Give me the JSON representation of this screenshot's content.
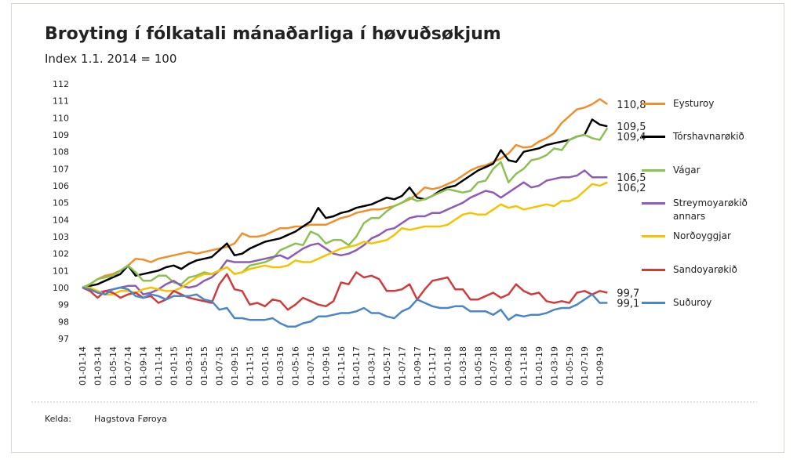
{
  "chart_data": {
    "type": "line",
    "title": "Broyting í fólkatali mánaðarliga í høvuðsøkjum",
    "subtitle": "Index 1.1. 2014 = 100",
    "source_label": "Kelda:",
    "source": "Hagstova Føroya",
    "grid": false,
    "legend": "right",
    "ylim": [
      97,
      112
    ],
    "yticks": [
      97,
      98,
      99,
      100,
      101,
      102,
      103,
      104,
      105,
      106,
      107,
      108,
      109,
      110,
      111,
      112
    ],
    "categories": [
      "01-01-14",
      null,
      "01-03-14",
      null,
      "01-05-14",
      null,
      "01-07-14",
      null,
      "01-09-14",
      null,
      "01-11-14",
      null,
      "01-01-15",
      null,
      "01-03-15",
      null,
      "01-05-15",
      null,
      "01-07-15",
      null,
      "01-09-15",
      null,
      "01-11-15",
      null,
      "01-01-16",
      null,
      "01-03-16",
      null,
      "01-05-16",
      null,
      "01-07-16",
      null,
      "01-09-16",
      null,
      "01-11-16",
      null,
      "01-01-17",
      null,
      "01-03-17",
      null,
      "01-05-17",
      null,
      "01-07-17",
      null,
      "01-09-17",
      null,
      "01-11-17",
      null,
      "01-01-18",
      null,
      "01-03-18",
      null,
      "01-05-18",
      null,
      "01-07-18",
      null,
      "01-09-18",
      null,
      "01-11-18",
      null,
      "01-01-19",
      null,
      "01-03-19",
      null,
      "01-05-19",
      null,
      "01-07-19",
      null,
      "01-09-19",
      null
    ],
    "series": [
      {
        "name": "Eysturoy",
        "color": "#f0902a",
        "values": [
          100,
          100.2,
          100.5,
          100.7,
          100.8,
          101.0,
          101.3,
          101.7,
          101.65,
          101.5,
          101.7,
          101.8,
          101.9,
          102.0,
          102.1,
          102.0,
          102.1,
          102.2,
          102.3,
          102.4,
          102.6,
          103.2,
          103.0,
          103.0,
          103.1,
          103.3,
          103.5,
          103.5,
          103.6,
          103.6,
          103.7,
          103.7,
          103.7,
          103.9,
          104.1,
          104.2,
          104.4,
          104.5,
          104.6,
          104.6,
          104.7,
          104.8,
          105.0,
          105.2,
          105.5,
          105.9,
          105.8,
          105.9,
          106.1,
          106.3,
          106.6,
          106.9,
          107.1,
          107.2,
          107.4,
          107.6,
          107.9,
          108.4,
          108.25,
          108.3,
          108.6,
          108.8,
          109.1,
          109.7,
          110.1,
          110.5,
          110.6,
          110.8,
          111.1,
          110.8
        ],
        "value_labels": [
          null,
          null,
          null,
          null,
          null,
          null,
          null,
          null,
          null,
          null,
          null,
          null,
          null,
          null,
          null,
          null,
          null,
          null,
          null,
          null,
          null,
          null,
          null,
          null,
          null,
          null,
          null,
          null,
          null,
          null,
          null,
          null,
          null,
          null,
          null,
          null,
          null,
          null,
          null,
          null,
          null,
          null,
          null,
          null,
          null,
          null,
          null,
          null,
          null,
          null,
          null,
          null,
          null,
          null,
          null,
          null,
          null,
          null,
          null,
          null,
          null,
          null,
          null,
          null,
          null,
          null,
          null,
          null,
          null,
          "110,8"
        ]
      },
      {
        "name": "Tórshavnarøkið",
        "color": "#000000",
        "values": [
          100,
          100.1,
          100.2,
          100.4,
          100.6,
          100.8,
          101.3,
          100.7,
          100.8,
          100.9,
          101.0,
          101.2,
          101.3,
          101.1,
          101.4,
          101.6,
          101.7,
          101.8,
          102.2,
          102.6,
          101.9,
          102.0,
          102.3,
          102.5,
          102.7,
          102.8,
          102.9,
          103.1,
          103.3,
          103.6,
          103.9,
          104.7,
          104.1,
          104.2,
          104.4,
          104.5,
          104.7,
          104.8,
          104.9,
          105.1,
          105.3,
          105.2,
          105.4,
          105.9,
          105.3,
          105.2,
          105.4,
          105.7,
          105.9,
          106.0,
          106.3,
          106.6,
          106.9,
          107.1,
          107.3,
          108.1,
          107.5,
          107.4,
          108.0,
          108.1,
          108.2,
          108.4,
          108.5,
          108.6,
          108.7,
          108.9,
          109.0,
          109.9,
          109.6,
          109.5
        ],
        "value_labels": [
          null,
          null,
          null,
          null,
          null,
          null,
          null,
          null,
          null,
          null,
          null,
          null,
          null,
          null,
          null,
          null,
          null,
          null,
          null,
          null,
          null,
          null,
          null,
          null,
          null,
          null,
          null,
          null,
          null,
          null,
          null,
          null,
          null,
          null,
          null,
          null,
          null,
          null,
          null,
          null,
          null,
          null,
          null,
          null,
          null,
          null,
          null,
          null,
          null,
          null,
          null,
          null,
          null,
          null,
          null,
          null,
          null,
          null,
          null,
          null,
          null,
          null,
          null,
          null,
          null,
          null,
          null,
          null,
          null,
          "109,5"
        ]
      },
      {
        "name": "Vágar",
        "color": "#8cc152",
        "values": [
          100,
          100.2,
          100.5,
          100.6,
          100.7,
          101.0,
          101.3,
          100.9,
          100.4,
          100.4,
          100.7,
          100.7,
          100.3,
          100.2,
          100.6,
          100.7,
          100.9,
          100.8,
          101.0,
          101.2,
          100.8,
          100.9,
          101.3,
          101.4,
          101.5,
          101.7,
          102.2,
          102.4,
          102.6,
          102.5,
          103.3,
          103.1,
          102.6,
          102.8,
          102.8,
          102.5,
          103.0,
          103.8,
          104.1,
          104.1,
          104.5,
          104.8,
          105.0,
          105.3,
          105.1,
          105.2,
          105.4,
          105.6,
          105.8,
          105.7,
          105.6,
          105.7,
          106.2,
          106.3,
          107.0,
          107.4,
          106.2,
          106.7,
          107.0,
          107.5,
          107.6,
          107.8,
          108.2,
          108.1,
          108.7,
          108.9,
          109.0,
          108.8,
          108.7,
          109.4
        ],
        "value_labels": [
          null,
          null,
          null,
          null,
          null,
          null,
          null,
          null,
          null,
          null,
          null,
          null,
          null,
          null,
          null,
          null,
          null,
          null,
          null,
          null,
          null,
          null,
          null,
          null,
          null,
          null,
          null,
          null,
          null,
          null,
          null,
          null,
          null,
          null,
          null,
          null,
          null,
          null,
          null,
          null,
          null,
          null,
          null,
          null,
          null,
          null,
          null,
          null,
          null,
          null,
          null,
          null,
          null,
          null,
          null,
          null,
          null,
          null,
          null,
          null,
          null,
          null,
          null,
          null,
          null,
          null,
          null,
          null,
          null,
          "109,4"
        ]
      },
      {
        "name": "Streymoyarøkið annars",
        "color": "#8e5cb5",
        "values": [
          100,
          99.9,
          99.7,
          99.8,
          99.9,
          100.0,
          100.1,
          100.1,
          99.6,
          99.7,
          99.9,
          100.2,
          100.4,
          100.1,
          100.0,
          100.1,
          100.4,
          100.6,
          101.0,
          101.6,
          101.5,
          101.5,
          101.5,
          101.6,
          101.7,
          101.8,
          101.9,
          101.7,
          102.0,
          102.3,
          102.5,
          102.6,
          102.3,
          102.0,
          101.9,
          102.0,
          102.2,
          102.5,
          102.9,
          103.1,
          103.4,
          103.5,
          103.8,
          104.1,
          104.2,
          104.2,
          104.4,
          104.4,
          104.6,
          104.8,
          105.0,
          105.3,
          105.5,
          105.7,
          105.6,
          105.3,
          105.6,
          105.9,
          106.2,
          105.9,
          106.0,
          106.3,
          106.4,
          106.5,
          106.5,
          106.6,
          106.9,
          106.5,
          106.5,
          106.5
        ],
        "value_labels": [
          null,
          null,
          null,
          null,
          null,
          null,
          null,
          null,
          null,
          null,
          null,
          null,
          null,
          null,
          null,
          null,
          null,
          null,
          null,
          null,
          null,
          null,
          null,
          null,
          null,
          null,
          null,
          null,
          null,
          null,
          null,
          null,
          null,
          null,
          null,
          null,
          null,
          null,
          null,
          null,
          null,
          null,
          null,
          null,
          null,
          null,
          null,
          null,
          null,
          null,
          null,
          null,
          null,
          null,
          null,
          null,
          null,
          null,
          null,
          null,
          null,
          null,
          null,
          null,
          null,
          null,
          null,
          null,
          null,
          "106,5"
        ]
      },
      {
        "name": "Norðoyggjar",
        "color": "#f5c400",
        "values": [
          100,
          100.0,
          99.8,
          99.6,
          99.6,
          99.8,
          99.8,
          99.7,
          99.9,
          100.0,
          99.9,
          99.8,
          99.8,
          100.0,
          100.3,
          100.6,
          100.8,
          100.8,
          101.0,
          101.2,
          100.8,
          100.9,
          101.1,
          101.2,
          101.3,
          101.2,
          101.2,
          101.3,
          101.6,
          101.5,
          101.5,
          101.7,
          101.9,
          102.1,
          102.3,
          102.4,
          102.5,
          102.7,
          102.6,
          102.7,
          102.8,
          103.1,
          103.5,
          103.4,
          103.5,
          103.6,
          103.6,
          103.6,
          103.7,
          104.0,
          104.3,
          104.4,
          104.3,
          104.3,
          104.6,
          104.9,
          104.7,
          104.8,
          104.6,
          104.7,
          104.8,
          104.9,
          104.8,
          105.1,
          105.1,
          105.3,
          105.7,
          106.1,
          106.0,
          106.2
        ],
        "value_labels": [
          null,
          null,
          null,
          null,
          null,
          null,
          null,
          null,
          null,
          null,
          null,
          null,
          null,
          null,
          null,
          null,
          null,
          null,
          null,
          null,
          null,
          null,
          null,
          null,
          null,
          null,
          null,
          null,
          null,
          null,
          null,
          null,
          null,
          null,
          null,
          null,
          null,
          null,
          null,
          null,
          null,
          null,
          null,
          null,
          null,
          null,
          null,
          null,
          null,
          null,
          null,
          null,
          null,
          null,
          null,
          null,
          null,
          null,
          null,
          null,
          null,
          null,
          null,
          null,
          null,
          null,
          null,
          null,
          null,
          "106,2"
        ]
      },
      {
        "name": "Sandoyarøkið",
        "color": "#d03c3c",
        "values": [
          100,
          99.8,
          99.4,
          99.8,
          99.7,
          99.4,
          99.6,
          99.7,
          99.4,
          99.5,
          99.1,
          99.3,
          99.8,
          99.6,
          99.4,
          99.3,
          99.2,
          99.1,
          100.2,
          100.8,
          99.9,
          99.8,
          99.0,
          99.1,
          98.9,
          99.3,
          99.2,
          98.7,
          99.0,
          99.4,
          99.2,
          99.0,
          98.9,
          99.2,
          100.3,
          100.2,
          100.9,
          100.6,
          100.7,
          100.5,
          99.8,
          99.8,
          99.9,
          100.2,
          99.3,
          99.9,
          100.4,
          100.5,
          100.6,
          99.9,
          99.9,
          99.3,
          99.3,
          99.5,
          99.7,
          99.4,
          99.6,
          100.2,
          99.8,
          99.6,
          99.7,
          99.2,
          99.1,
          99.2,
          99.1,
          99.7,
          99.8,
          99.6,
          99.8,
          99.7
        ],
        "value_labels": [
          null,
          null,
          null,
          null,
          null,
          null,
          null,
          null,
          null,
          null,
          null,
          null,
          null,
          null,
          null,
          null,
          null,
          null,
          null,
          null,
          null,
          null,
          null,
          null,
          null,
          null,
          null,
          null,
          null,
          null,
          null,
          null,
          null,
          null,
          null,
          null,
          null,
          null,
          null,
          null,
          null,
          null,
          null,
          null,
          null,
          null,
          null,
          null,
          null,
          null,
          null,
          null,
          null,
          null,
          null,
          null,
          null,
          null,
          null,
          null,
          null,
          null,
          null,
          null,
          null,
          null,
          null,
          null,
          null,
          "99,7"
        ]
      },
      {
        "name": "Suðuroy",
        "color": "#4a86c8",
        "values": [
          100,
          99.9,
          99.7,
          99.6,
          99.9,
          100.0,
          99.9,
          99.5,
          99.4,
          99.6,
          99.5,
          99.3,
          99.5,
          99.5,
          99.5,
          99.6,
          99.3,
          99.2,
          98.7,
          98.8,
          98.2,
          98.2,
          98.1,
          98.1,
          98.1,
          98.2,
          97.9,
          97.7,
          97.7,
          97.9,
          98.0,
          98.3,
          98.3,
          98.4,
          98.5,
          98.5,
          98.6,
          98.8,
          98.5,
          98.5,
          98.3,
          98.2,
          98.6,
          98.8,
          99.3,
          99.1,
          98.9,
          98.8,
          98.8,
          98.9,
          98.9,
          98.6,
          98.6,
          98.6,
          98.4,
          98.7,
          98.1,
          98.4,
          98.3,
          98.4,
          98.4,
          98.5,
          98.7,
          98.8,
          98.8,
          99.0,
          99.3,
          99.6,
          99.1,
          99.1
        ],
        "value_labels": [
          null,
          null,
          null,
          null,
          null,
          null,
          null,
          null,
          null,
          null,
          null,
          null,
          null,
          null,
          null,
          null,
          null,
          null,
          null,
          null,
          null,
          null,
          null,
          null,
          null,
          null,
          null,
          null,
          null,
          null,
          null,
          null,
          null,
          null,
          null,
          null,
          null,
          null,
          null,
          null,
          null,
          null,
          null,
          null,
          null,
          null,
          null,
          null,
          null,
          null,
          null,
          null,
          null,
          null,
          null,
          null,
          null,
          null,
          null,
          null,
          null,
          null,
          null,
          null,
          null,
          null,
          null,
          null,
          null,
          "99,1"
        ]
      }
    ]
  }
}
